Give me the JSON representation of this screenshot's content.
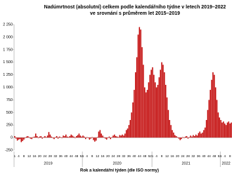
{
  "chart_data": {
    "type": "bar",
    "title": "Nadúmrtnost (absolutní) celkem podle kalendářního týdne v letech 2019–2022",
    "subtitle": "ve srovnání s průměrem let 2015–2019",
    "x_label": "Rok a kalendářní týden (dle ISO normy)",
    "groups": [
      "2019",
      "2020",
      "2021",
      "2022"
    ],
    "categories": [
      "1",
      null,
      null,
      "4",
      null,
      null,
      null,
      "8",
      null,
      null,
      null,
      "12",
      null,
      null,
      null,
      "16",
      null,
      null,
      null,
      "20",
      null,
      null,
      null,
      "24",
      null,
      null,
      null,
      "28",
      null,
      null,
      null,
      "32",
      null,
      null,
      null,
      "36",
      null,
      null,
      null,
      "40",
      null,
      null,
      null,
      "44",
      null,
      null,
      null,
      "48",
      null,
      null,
      null,
      "52",
      "1",
      null,
      null,
      "4",
      null,
      null,
      null,
      "8",
      null,
      null,
      null,
      "12",
      null,
      null,
      null,
      "16",
      null,
      null,
      null,
      "20",
      null,
      null,
      null,
      "24",
      null,
      null,
      null,
      "28",
      null,
      null,
      null,
      "32",
      null,
      null,
      null,
      "36",
      null,
      null,
      null,
      "40",
      null,
      null,
      null,
      "44",
      null,
      null,
      null,
      "48",
      null,
      null,
      null,
      "52",
      null,
      "1",
      null,
      null,
      "4",
      null,
      null,
      null,
      "8",
      null,
      null,
      null,
      "12",
      null,
      null,
      null,
      "16",
      null,
      null,
      null,
      "20",
      null,
      null,
      null,
      "24",
      null,
      null,
      null,
      "28",
      null,
      null,
      null,
      "32",
      null,
      null,
      null,
      "36",
      null,
      null,
      null,
      "40",
      null,
      null,
      null,
      "44",
      null,
      null,
      null,
      "48",
      null,
      null,
      null,
      "52",
      "1",
      null,
      null,
      "4",
      null,
      null,
      null,
      "8",
      null
    ],
    "values": [
      30,
      -20,
      -60,
      -40,
      -30,
      -90,
      -70,
      -40,
      -10,
      20,
      30,
      10,
      -20,
      -30,
      10,
      20,
      80,
      30,
      -10,
      20,
      30,
      -20,
      10,
      30,
      10,
      40,
      110,
      60,
      20,
      -10,
      -30,
      10,
      30,
      -20,
      20,
      10,
      -10,
      40,
      30,
      60,
      20,
      10,
      30,
      60,
      40,
      20,
      -10,
      30,
      50,
      80,
      40,
      20,
      40,
      20,
      -30,
      10,
      -10,
      -40,
      -20,
      10,
      -50,
      -80,
      -60,
      10,
      120,
      150,
      80,
      40,
      10,
      -20,
      -40,
      -10,
      20,
      -30,
      10,
      40,
      60,
      30,
      20,
      10,
      50,
      40,
      60,
      40,
      80,
      150,
      180,
      250,
      350,
      500,
      700,
      950,
      1300,
      1600,
      2050,
      2200,
      2150,
      1800,
      1450,
      1000,
      900,
      950,
      1100,
      1250,
      1350,
      1400,
      1250,
      1100,
      1000,
      1050,
      1200,
      1350,
      1500,
      1450,
      1300,
      1050,
      800,
      550,
      350,
      250,
      150,
      100,
      50,
      30,
      10,
      -20,
      -50,
      -30,
      10,
      -10,
      20,
      30,
      -20,
      10,
      40,
      20,
      50,
      30,
      60,
      40,
      90,
      120,
      80,
      100,
      150,
      200,
      350,
      550,
      750,
      950,
      1150,
      1300,
      1250,
      1000,
      750,
      500,
      400,
      350,
      300,
      320,
      280,
      250,
      300,
      320,
      280,
      300
    ],
    "color": "#c00000",
    "ylim": [
      -250,
      2250
    ],
    "yticks": [
      -250,
      0,
      250,
      500,
      750,
      {
        "value": 1000,
        "label": "1 000"
      },
      {
        "value": 1250,
        "label": "1 250"
      },
      {
        "value": 1500,
        "label": "1 500"
      },
      {
        "value": 1750,
        "label": "1 750"
      },
      {
        "value": 2000,
        "label": "2 000"
      },
      {
        "value": 2250,
        "label": "2 250"
      }
    ],
    "grid": false
  }
}
